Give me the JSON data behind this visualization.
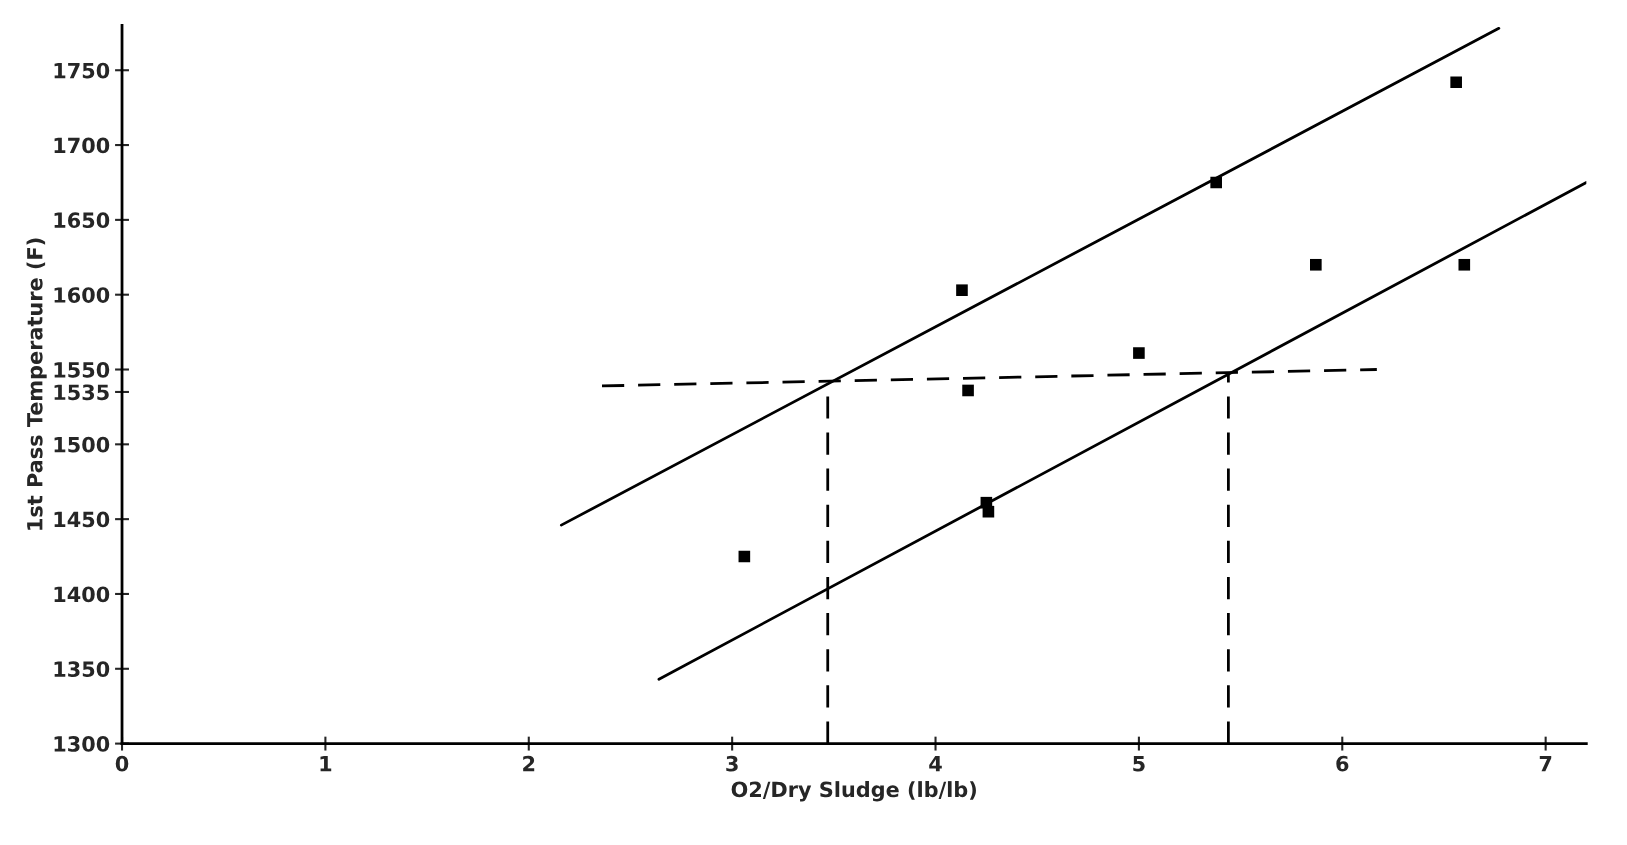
{
  "chart_data": {
    "type": "scatter",
    "xlabel": "O2/Dry Sludge (lb/lb)",
    "ylabel": "1st Pass Temperature (F)",
    "xlim": [
      0,
      7.2
    ],
    "ylim": [
      1300,
      1780
    ],
    "xticks": [
      0,
      1,
      2,
      3,
      4,
      5,
      6,
      7
    ],
    "yticks": [
      1300,
      1350,
      1400,
      1450,
      1500,
      {
        "value": 1535,
        "label": "1535"
      },
      1550,
      1600,
      1650,
      1700,
      1750
    ],
    "grid": false,
    "legend": false,
    "series": [
      {
        "color": "#000000",
        "marker": "square",
        "x": [
          3.06,
          4.13,
          4.16,
          4.25,
          4.26,
          5.0,
          5.38,
          5.87,
          6.56,
          6.6
        ],
        "values": [
          1425,
          1603,
          1536,
          1461,
          1455,
          1561,
          1675,
          1620,
          1742,
          1620
        ]
      },
      {
        "type": "line",
        "color": "#000000",
        "line_style": "solid",
        "x": [
          2.16,
          6.77
        ],
        "values": [
          1446,
          1778
        ]
      },
      {
        "type": "line",
        "color": "#000000",
        "line_style": "solid",
        "x": [
          2.64,
          7.2
        ],
        "values": [
          1343,
          1675
        ]
      },
      {
        "type": "line",
        "color": "#000000",
        "line_style": "dashed",
        "x": [
          2.36,
          6.17
        ],
        "values": [
          1539,
          1550
        ]
      },
      {
        "type": "line",
        "color": "#000000",
        "line_style": "dashed",
        "x": [
          3.47,
          3.47
        ],
        "values": [
          1300,
          1541
        ]
      },
      {
        "type": "line",
        "color": "#000000",
        "line_style": "dashed",
        "x": [
          5.44,
          5.44
        ],
        "values": [
          1300,
          1548
        ]
      }
    ]
  }
}
